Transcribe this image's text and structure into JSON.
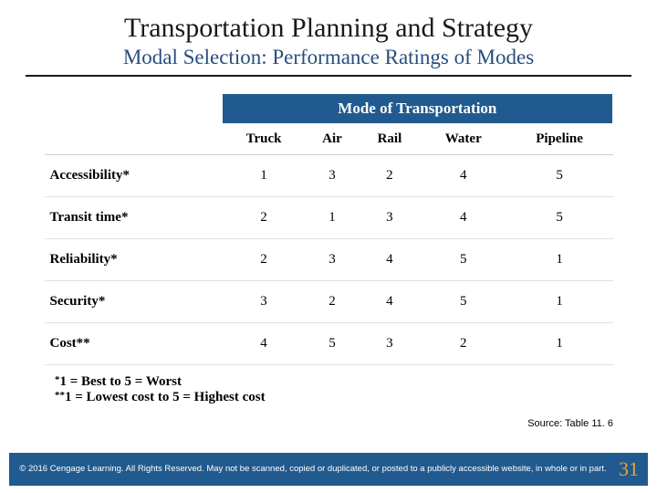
{
  "title": "Transportation Planning and Strategy",
  "subtitle": "Modal Selection: Performance Ratings of Modes",
  "table": {
    "super_header": "Mode of Transportation",
    "columns": [
      "Truck",
      "Air",
      "Rail",
      "Water",
      "Pipeline"
    ],
    "rows": [
      {
        "label": "Accessibility*",
        "values": [
          "1",
          "3",
          "2",
          "4",
          "5"
        ]
      },
      {
        "label": "Transit time*",
        "values": [
          "2",
          "1",
          "3",
          "4",
          "5"
        ]
      },
      {
        "label": "Reliability*",
        "values": [
          "2",
          "3",
          "4",
          "5",
          "1"
        ]
      },
      {
        "label": "Security*",
        "values": [
          "3",
          "2",
          "4",
          "5",
          "1"
        ]
      },
      {
        "label": "Cost**",
        "values": [
          "4",
          "5",
          "3",
          "2",
          "1"
        ]
      }
    ]
  },
  "footnote1": "1 = Best to 5 = Worst",
  "footnote2": "1 = Lowest cost to 5 = Highest cost",
  "source": "Source: Table 11. 6",
  "copyright": "© 2016 Cengage Learning. All Rights Reserved. May not be scanned, copied or duplicated, or posted to a publicly accessible website, in whole or in part.",
  "page_number": "31",
  "colors": {
    "header_bg": "#215a8e",
    "subtitle_color": "#274e7e",
    "page_num_color": "#e8a43a"
  }
}
